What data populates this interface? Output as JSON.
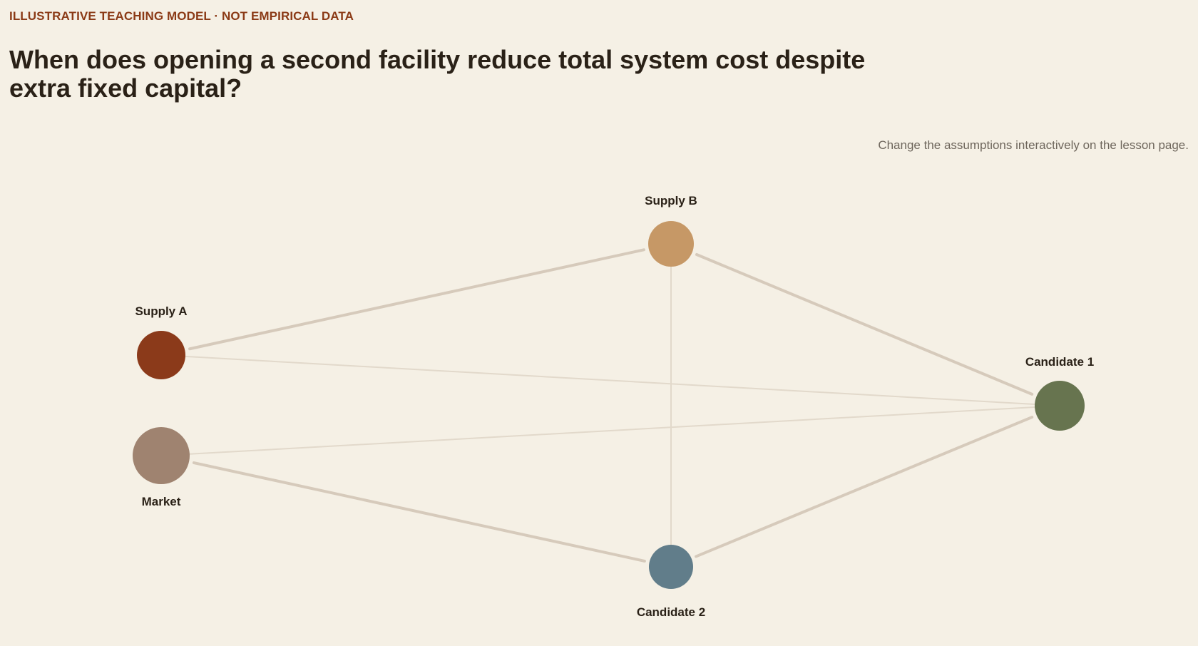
{
  "header": {
    "eyebrow": "ILLUSTRATIVE TEACHING MODEL · NOT EMPIRICAL DATA",
    "title": "When does opening a second facility reduce total system cost despite extra fixed capital?",
    "note": "Change the assumptions interactively on the lesson page."
  },
  "colors": {
    "background": "#f5f0e5",
    "accent": "#8b3a16",
    "edge": "#d6cabb",
    "edge_faint": "#e2d9cb"
  },
  "network": {
    "nodes": [
      {
        "id": "supply-a",
        "label": "Supply A",
        "color": "#8b3a1a"
      },
      {
        "id": "supply-b",
        "label": "Supply B",
        "color": "#c69866"
      },
      {
        "id": "market",
        "label": "Market",
        "color": "#9f8370"
      },
      {
        "id": "candidate-1",
        "label": "Candidate 1",
        "color": "#67744f"
      },
      {
        "id": "candidate-2",
        "label": "Candidate 2",
        "color": "#617d8a"
      }
    ],
    "edges": [
      {
        "from": "supply-a",
        "to": "supply-b",
        "weight": "strong"
      },
      {
        "from": "supply-b",
        "to": "candidate-1",
        "weight": "strong"
      },
      {
        "from": "market",
        "to": "candidate-2",
        "weight": "strong"
      },
      {
        "from": "candidate-2",
        "to": "candidate-1",
        "weight": "strong"
      },
      {
        "from": "supply-a",
        "to": "candidate-1",
        "weight": "faint"
      },
      {
        "from": "market",
        "to": "candidate-1",
        "weight": "faint"
      },
      {
        "from": "supply-b",
        "to": "candidate-2",
        "weight": "faint"
      }
    ]
  }
}
